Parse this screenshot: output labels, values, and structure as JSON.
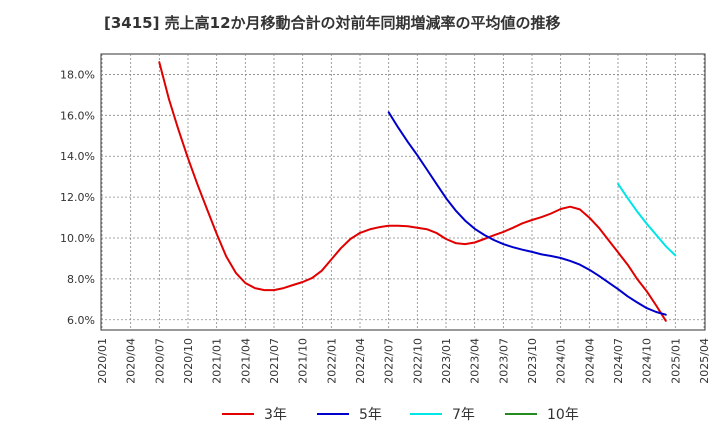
{
  "chart_data": {
    "type": "line",
    "title": "[3415]  売上高12か月移動合計の対前年同期増減率の平均値の推移",
    "xlabel": "",
    "ylabel": "",
    "ylim": [
      5.5,
      19.0
    ],
    "y_ticks": [
      {
        "value": 6,
        "label": "6.0%"
      },
      {
        "value": 8,
        "label": "8.0%"
      },
      {
        "value": 10,
        "label": "10.0%"
      },
      {
        "value": 12,
        "label": "12.0%"
      },
      {
        "value": 14,
        "label": "14.0%"
      },
      {
        "value": 16,
        "label": "16.0%"
      },
      {
        "value": 18,
        "label": "18.0%"
      }
    ],
    "x_ticks": [
      {
        "index": 0,
        "label": "2020/01"
      },
      {
        "index": 3,
        "label": "2020/04"
      },
      {
        "index": 6,
        "label": "2020/07"
      },
      {
        "index": 9,
        "label": "2020/10"
      },
      {
        "index": 12,
        "label": "2021/01"
      },
      {
        "index": 15,
        "label": "2021/04"
      },
      {
        "index": 18,
        "label": "2021/07"
      },
      {
        "index": 21,
        "label": "2021/10"
      },
      {
        "index": 24,
        "label": "2022/01"
      },
      {
        "index": 27,
        "label": "2022/04"
      },
      {
        "index": 30,
        "label": "2022/07"
      },
      {
        "index": 33,
        "label": "2022/10"
      },
      {
        "index": 36,
        "label": "2023/01"
      },
      {
        "index": 39,
        "label": "2023/04"
      },
      {
        "index": 42,
        "label": "2023/07"
      },
      {
        "index": 45,
        "label": "2023/10"
      },
      {
        "index": 48,
        "label": "2024/01"
      },
      {
        "index": 51,
        "label": "2024/04"
      },
      {
        "index": 54,
        "label": "2024/07"
      },
      {
        "index": 57,
        "label": "2024/10"
      },
      {
        "index": 60,
        "label": "2025/01"
      },
      {
        "index": 63,
        "label": "2025/04"
      }
    ],
    "x_count": 64,
    "grid": true,
    "legend_position": "bottom",
    "series": [
      {
        "name": "3年",
        "color": "#e00000",
        "start_index": 6,
        "values": [
          18.6,
          16.8,
          15.3,
          13.9,
          12.6,
          11.4,
          10.2,
          9.1,
          8.3,
          7.8,
          7.55,
          7.45,
          7.45,
          7.55,
          7.7,
          7.85,
          8.05,
          8.4,
          8.95,
          9.5,
          9.95,
          10.25,
          10.42,
          10.53,
          10.6,
          10.6,
          10.57,
          10.5,
          10.43,
          10.25,
          9.95,
          9.75,
          9.7,
          9.78,
          9.95,
          10.13,
          10.3,
          10.5,
          10.72,
          10.88,
          11.02,
          11.2,
          11.42,
          11.53,
          11.4,
          11.0,
          10.5,
          9.9,
          9.3,
          8.7,
          8.0,
          7.4,
          6.7,
          5.95
        ]
      },
      {
        "name": "5年",
        "color": "#0000cc",
        "start_index": 30,
        "values": [
          16.15,
          15.4,
          14.7,
          14.05,
          13.35,
          12.65,
          11.95,
          11.35,
          10.85,
          10.45,
          10.15,
          9.9,
          9.7,
          9.55,
          9.43,
          9.32,
          9.2,
          9.12,
          9.02,
          8.88,
          8.7,
          8.45,
          8.15,
          7.83,
          7.5,
          7.15,
          6.85,
          6.57,
          6.38,
          6.25
        ]
      },
      {
        "name": "7年",
        "color": "#00e5e5",
        "start_index": 54,
        "values": [
          12.65,
          11.95,
          11.3,
          10.7,
          10.15,
          9.6,
          9.15
        ]
      },
      {
        "name": "10年",
        "color": "#228b22",
        "start_index": 64,
        "values": []
      }
    ]
  }
}
